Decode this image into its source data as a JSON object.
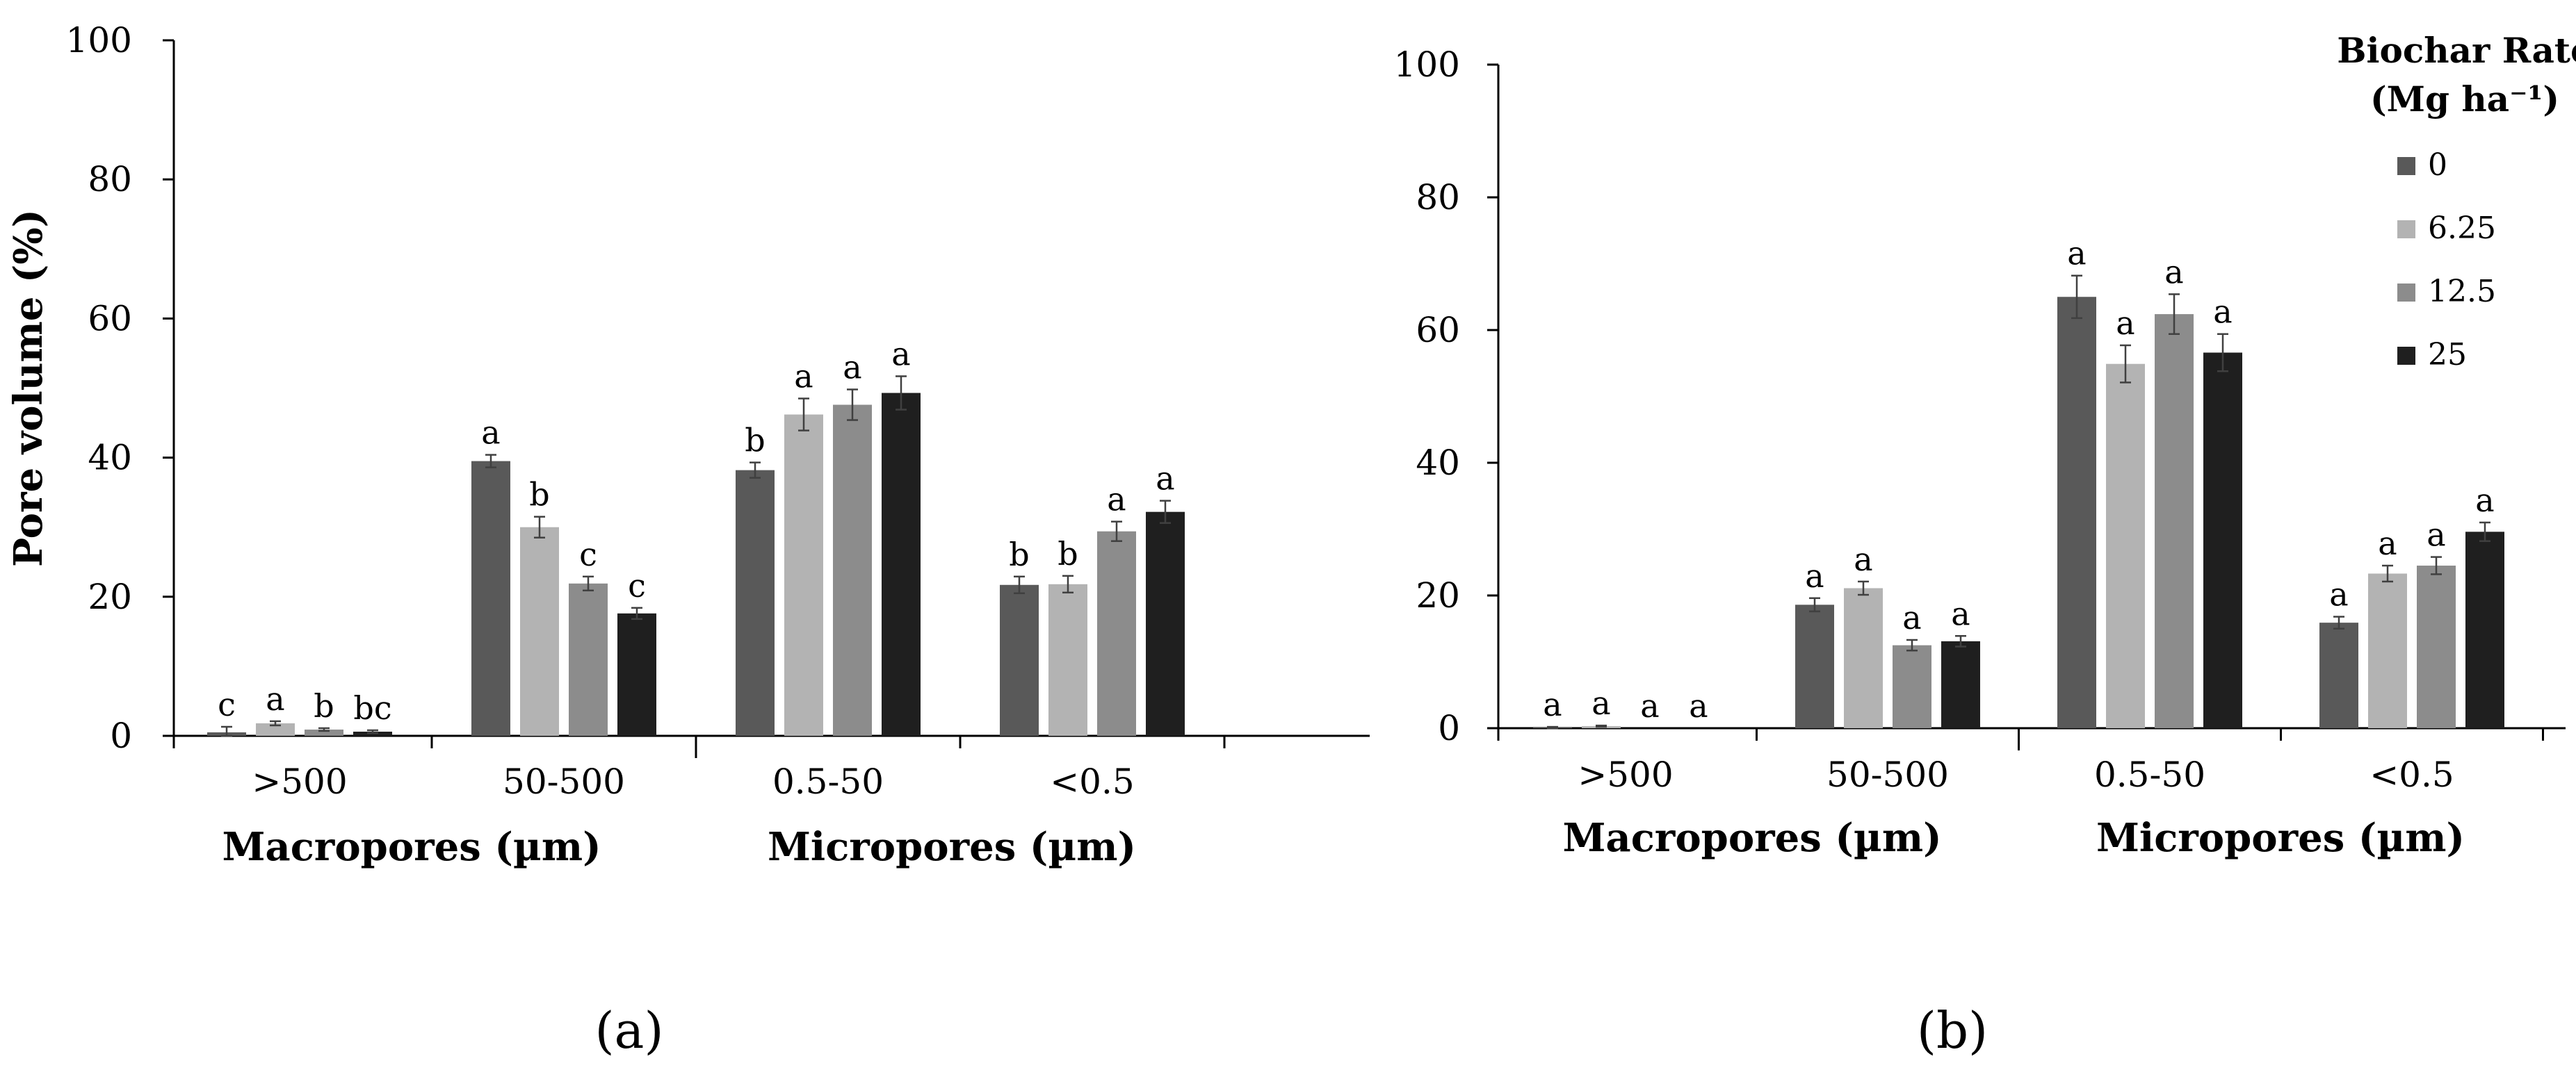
{
  "chart_data": [
    {
      "type": "bar",
      "panel_label": "(a)",
      "ylabel": "Pore volume (%)",
      "ylim": [
        0,
        100
      ],
      "yticks": [
        "0",
        "20",
        "40",
        "60",
        "80",
        "100"
      ],
      "categories": [
        ">500",
        "50-500",
        "0.5-50",
        "<0.5"
      ],
      "group_labels": [
        "Macropores (µm)",
        "Micropores (µm)"
      ],
      "series": [
        {
          "name": "0",
          "color": "#595959",
          "values": [
            0.5,
            39.5,
            38.2,
            21.7
          ],
          "errors": [
            0.8,
            0.9,
            1.1,
            1.2
          ],
          "letters": [
            "c",
            "a",
            "b",
            "b"
          ]
        },
        {
          "name": "6.25",
          "color": "#b3b3b3",
          "values": [
            1.8,
            30.0,
            46.2,
            21.8
          ],
          "errors": [
            0.3,
            1.5,
            2.3,
            1.2
          ],
          "letters": [
            "a",
            "b",
            "a",
            "b"
          ]
        },
        {
          "name": "12.5",
          "color": "#8c8c8c",
          "values": [
            0.9,
            21.9,
            47.6,
            29.4
          ],
          "errors": [
            0.2,
            1.0,
            2.2,
            1.4
          ],
          "letters": [
            "b",
            "c",
            "a",
            "a"
          ]
        },
        {
          "name": "25",
          "color": "#1f1f1f",
          "values": [
            0.6,
            17.6,
            49.3,
            32.2
          ],
          "errors": [
            0.2,
            0.8,
            2.4,
            1.6
          ],
          "letters": [
            "bc",
            "c",
            "a",
            "a"
          ]
        }
      ]
    },
    {
      "type": "bar",
      "panel_label": "(b)",
      "ylabel": "",
      "ylim": [
        0,
        100
      ],
      "yticks": [
        "0",
        "20",
        "40",
        "60",
        "80",
        "100"
      ],
      "categories": [
        ">500",
        "50-500",
        "0.5-50",
        "<0.5"
      ],
      "group_labels": [
        "Macropores (µm)",
        "Micropores (µm)"
      ],
      "legend_title": [
        "Biochar Rate",
        "(Mg ha⁻¹)"
      ],
      "legend_position": "top-right",
      "series": [
        {
          "name": "0",
          "color": "#595959",
          "values": [
            0.1,
            18.6,
            65.0,
            15.9
          ],
          "errors": [
            0.1,
            1.0,
            3.2,
            0.9
          ],
          "letters": [
            "a",
            "a",
            "a",
            "a"
          ]
        },
        {
          "name": "6.25",
          "color": "#b3b3b3",
          "values": [
            0.3,
            21.1,
            54.9,
            23.3
          ],
          "errors": [
            0.1,
            1.0,
            2.8,
            1.2
          ],
          "letters": [
            "a",
            "a",
            "a",
            "a"
          ]
        },
        {
          "name": "12.5",
          "color": "#8c8c8c",
          "values": [
            0.0,
            12.5,
            62.4,
            24.5
          ],
          "errors": [
            0.0,
            0.8,
            3.0,
            1.3
          ],
          "letters": [
            "a",
            "a",
            "a",
            "a"
          ]
        },
        {
          "name": "25",
          "color": "#1f1f1f",
          "values": [
            0.0,
            13.1,
            56.6,
            29.6
          ],
          "errors": [
            0.0,
            0.8,
            2.8,
            1.4
          ],
          "letters": [
            "a",
            "a",
            "a",
            "a"
          ]
        }
      ]
    }
  ]
}
